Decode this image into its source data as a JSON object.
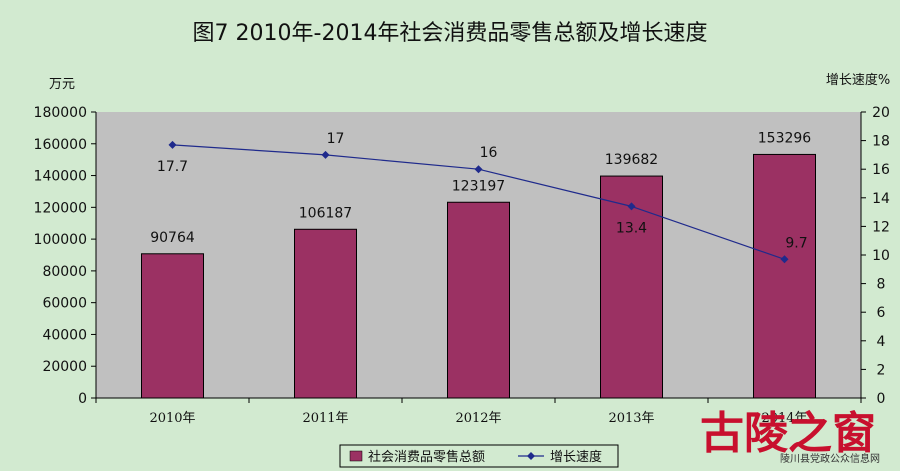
{
  "chart_data": {
    "type": "bar",
    "title": "图7    2010年-2014年社会消费品零售总额及增长速度",
    "ylabel_left": "万元",
    "ylabel_right": "增长速度%",
    "categories": [
      "2010年",
      "2011年",
      "2012年",
      "2013年",
      "2014年"
    ],
    "ylim_left": [
      0,
      180000
    ],
    "yticks_left": [
      "0",
      "20000",
      "40000",
      "60000",
      "80000",
      "100000",
      "120000",
      "140000",
      "160000",
      "180000"
    ],
    "ylim_right": [
      0,
      20
    ],
    "yticks_right": [
      "0",
      "2",
      "4",
      "6",
      "8",
      "10",
      "12",
      "14",
      "16",
      "18",
      "20"
    ],
    "series": [
      {
        "name": "社会消费品零售总额",
        "type": "bar",
        "axis": "left",
        "color": "#9b3163",
        "values": [
          90764,
          106187,
          123197,
          139682,
          153296
        ],
        "labels": [
          "90764",
          "106187",
          "123197",
          "139682",
          "153296"
        ]
      },
      {
        "name": "增长速度",
        "type": "line",
        "axis": "right",
        "color": "#1f2a8c",
        "values": [
          17.7,
          17,
          16,
          13.4,
          9.7
        ],
        "labels": [
          "17.7",
          "17",
          "16",
          "13.4",
          "9.7"
        ]
      }
    ],
    "plot_background": "#c0c0c0",
    "page_background": "#d2ead0",
    "legend_position": "bottom"
  },
  "watermark": {
    "logo_text": "古陵之窗",
    "subtitle": "陵川县党政公众信息网"
  }
}
